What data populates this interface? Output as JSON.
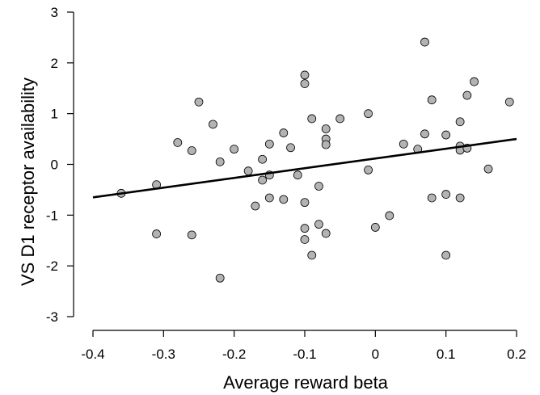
{
  "chart_data": {
    "type": "scatter",
    "title": "",
    "xlabel": "Average reward beta",
    "ylabel": "VS D1 receptor availability",
    "xlim": [
      -0.4,
      0.2
    ],
    "ylim": [
      -3,
      3
    ],
    "x_ticks": [
      "-0.4",
      "-0.3",
      "-0.2",
      "-0.1",
      "0",
      "0.1",
      "0.2"
    ],
    "y_ticks": [
      "-3",
      "-2",
      "-1",
      "0",
      "1",
      "2",
      "3"
    ],
    "grid": false,
    "legend": "none",
    "point_color": "#b3b3b3",
    "fit_line": {
      "x": [
        -0.4,
        0.2
      ],
      "y": [
        -0.65,
        0.5
      ]
    },
    "points": [
      {
        "x": -0.36,
        "y": -0.57
      },
      {
        "x": -0.31,
        "y": -0.4
      },
      {
        "x": -0.31,
        "y": -1.37
      },
      {
        "x": -0.28,
        "y": 0.43
      },
      {
        "x": -0.26,
        "y": 0.27
      },
      {
        "x": -0.26,
        "y": -1.39
      },
      {
        "x": -0.25,
        "y": 1.23
      },
      {
        "x": -0.23,
        "y": 0.79
      },
      {
        "x": -0.22,
        "y": 0.05
      },
      {
        "x": -0.22,
        "y": -2.24
      },
      {
        "x": -0.2,
        "y": 0.3
      },
      {
        "x": -0.18,
        "y": -0.13
      },
      {
        "x": -0.17,
        "y": -0.82
      },
      {
        "x": -0.16,
        "y": 0.1
      },
      {
        "x": -0.16,
        "y": -0.31
      },
      {
        "x": -0.15,
        "y": 0.4
      },
      {
        "x": -0.15,
        "y": -0.21
      },
      {
        "x": -0.15,
        "y": -0.66
      },
      {
        "x": -0.13,
        "y": 0.62
      },
      {
        "x": -0.13,
        "y": -0.69
      },
      {
        "x": -0.12,
        "y": 0.33
      },
      {
        "x": -0.11,
        "y": -0.21
      },
      {
        "x": -0.1,
        "y": 1.76
      },
      {
        "x": -0.1,
        "y": 1.59
      },
      {
        "x": -0.1,
        "y": -0.75
      },
      {
        "x": -0.1,
        "y": -1.26
      },
      {
        "x": -0.1,
        "y": -1.48
      },
      {
        "x": -0.09,
        "y": 0.9
      },
      {
        "x": -0.09,
        "y": -1.79
      },
      {
        "x": -0.08,
        "y": -0.43
      },
      {
        "x": -0.08,
        "y": -1.18
      },
      {
        "x": -0.07,
        "y": 0.7
      },
      {
        "x": -0.07,
        "y": 0.5
      },
      {
        "x": -0.07,
        "y": 0.39
      },
      {
        "x": -0.07,
        "y": -1.36
      },
      {
        "x": -0.05,
        "y": 0.9
      },
      {
        "x": -0.01,
        "y": 1.0
      },
      {
        "x": -0.01,
        "y": -0.11
      },
      {
        "x": 0.0,
        "y": -1.24
      },
      {
        "x": 0.02,
        "y": -1.01
      },
      {
        "x": 0.04,
        "y": 0.4
      },
      {
        "x": 0.06,
        "y": 0.3
      },
      {
        "x": 0.07,
        "y": 2.41
      },
      {
        "x": 0.07,
        "y": 0.6
      },
      {
        "x": 0.08,
        "y": 1.27
      },
      {
        "x": 0.08,
        "y": -0.66
      },
      {
        "x": 0.1,
        "y": 0.58
      },
      {
        "x": 0.1,
        "y": -0.59
      },
      {
        "x": 0.1,
        "y": -1.79
      },
      {
        "x": 0.12,
        "y": 0.84
      },
      {
        "x": 0.12,
        "y": 0.36
      },
      {
        "x": 0.12,
        "y": 0.28
      },
      {
        "x": 0.12,
        "y": -0.66
      },
      {
        "x": 0.13,
        "y": 1.36
      },
      {
        "x": 0.13,
        "y": 0.32
      },
      {
        "x": 0.14,
        "y": 1.63
      },
      {
        "x": 0.16,
        "y": -0.09
      },
      {
        "x": 0.19,
        "y": 1.23
      }
    ]
  }
}
